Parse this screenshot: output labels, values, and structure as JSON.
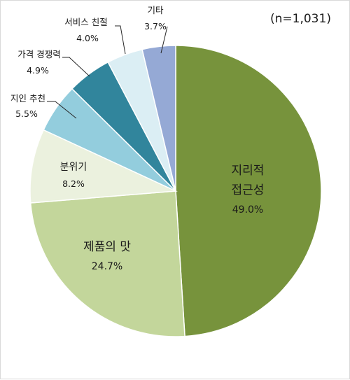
{
  "chart_data": {
    "type": "pie",
    "annotation": "(n=1,031)",
    "unit": "%",
    "slices": [
      {
        "label": "지리적",
        "label_line2": "접근성",
        "value": 49.0,
        "value_text": "49.0%",
        "color": "#77933c"
      },
      {
        "label": "제품의 맛",
        "value": 24.7,
        "value_text": "24.7%",
        "color": "#c3d69b"
      },
      {
        "label": "분위기",
        "value": 8.2,
        "value_text": "8.2%",
        "color": "#ebf1de"
      },
      {
        "label": "지인 추천",
        "value": 5.5,
        "value_text": "5.5%",
        "color": "#93cddd"
      },
      {
        "label": "가격 경쟁력",
        "value": 4.9,
        "value_text": "4.9%",
        "color": "#31859c"
      },
      {
        "label": "서비스 친절",
        "value": 4.0,
        "value_text": "4.0%",
        "color": "#dbeef4"
      },
      {
        "label": "기타",
        "value": 3.7,
        "value_text": "3.7%",
        "color": "#95a9d5"
      }
    ]
  }
}
